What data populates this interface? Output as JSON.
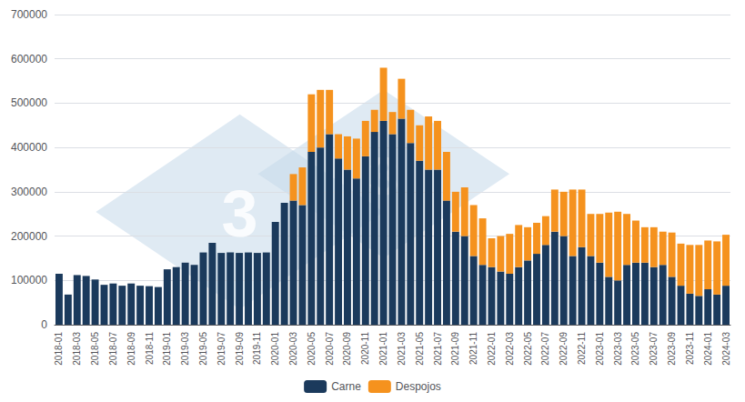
{
  "chart_data": {
    "type": "bar",
    "stacked": true,
    "categories": [
      "2018-01",
      null,
      "2018-03",
      null,
      "2018-05",
      null,
      "2018-07",
      null,
      "2018-09",
      null,
      "2018-11",
      null,
      "2019-01",
      null,
      "2019-03",
      null,
      "2019-05",
      null,
      "2019-07",
      null,
      "2019-09",
      null,
      "2019-11",
      null,
      "2020-01",
      null,
      "2020-03",
      null,
      "2020-05",
      null,
      "2020-07",
      null,
      "2020-09",
      null,
      "2020-11",
      null,
      "2021-01",
      null,
      "2021-03",
      null,
      "2021-05",
      null,
      "2021-07",
      null,
      "2021-09",
      null,
      "2021-11",
      null,
      "2022-01",
      null,
      "2022-03",
      null,
      "2022-05",
      null,
      "2022-07",
      null,
      "2022-09",
      null,
      "2022-11",
      null,
      "2023-01",
      null,
      "2023-03",
      null,
      "2023-05",
      null,
      "2023-07",
      null,
      "2023-09",
      null,
      "2023-11",
      null,
      "2024-01",
      null,
      "2024-03"
    ],
    "series": [
      {
        "name": "Carne",
        "color": "#1b3a5c",
        "values": [
          115000,
          68000,
          112000,
          110000,
          102000,
          90000,
          93000,
          88000,
          93000,
          88000,
          87000,
          85000,
          125000,
          130000,
          140000,
          135000,
          163000,
          185000,
          162000,
          163000,
          162000,
          163000,
          162000,
          163000,
          232000,
          275000,
          280000,
          270000,
          390000,
          400000,
          430000,
          375000,
          350000,
          330000,
          380000,
          435000,
          460000,
          430000,
          465000,
          410000,
          370000,
          350000,
          350000,
          280000,
          210000,
          200000,
          155000,
          135000,
          130000,
          120000,
          115000,
          130000,
          145000,
          160000,
          180000,
          210000,
          200000,
          155000,
          175000,
          155000,
          140000,
          108000,
          100000,
          135000,
          140000,
          140000,
          130000,
          135000,
          108000,
          88000,
          70000,
          65000,
          80000,
          68000,
          88000
        ]
      },
      {
        "name": "Despojos",
        "color": "#f5921e",
        "values": [
          0,
          0,
          0,
          0,
          0,
          0,
          0,
          0,
          0,
          0,
          0,
          0,
          0,
          0,
          0,
          0,
          0,
          0,
          0,
          0,
          0,
          0,
          0,
          0,
          0,
          0,
          60000,
          85000,
          130000,
          130000,
          100000,
          55000,
          75000,
          90000,
          80000,
          50000,
          120000,
          50000,
          90000,
          75000,
          80000,
          120000,
          110000,
          110000,
          90000,
          110000,
          115000,
          105000,
          65000,
          80000,
          90000,
          95000,
          75000,
          70000,
          65000,
          95000,
          100000,
          150000,
          130000,
          95000,
          110000,
          145000,
          155000,
          115000,
          95000,
          80000,
          90000,
          75000,
          100000,
          95000,
          110000,
          115000,
          110000,
          120000,
          115000
        ]
      }
    ],
    "annotations": [
      "3",
      "3"
    ],
    "ylim": [
      0,
      700000
    ],
    "yticks": [
      0,
      100000,
      200000,
      300000,
      400000,
      500000,
      600000,
      700000
    ],
    "grid": true,
    "legend": "bottom"
  }
}
